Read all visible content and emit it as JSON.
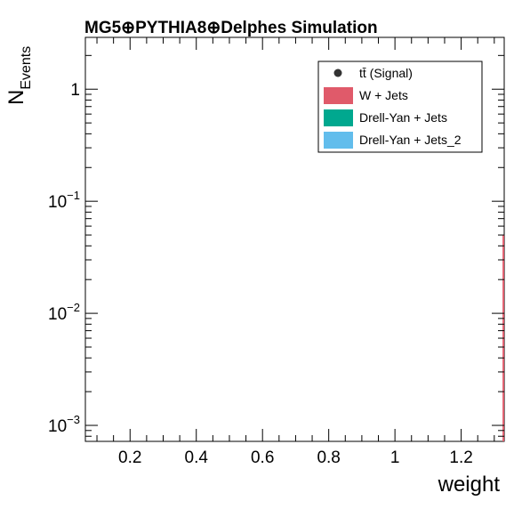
{
  "chart_data": {
    "type": "bar",
    "title": "MG5⊕PYTHIA8⊕Delphes Simulation",
    "xlabel": "weight",
    "ylabel": "N",
    "ylabel_sub": "Events",
    "xlim": [
      0.065,
      1.33
    ],
    "ylim": [
      0.00072,
      2.9
    ],
    "log_y": true,
    "x_ticks": [
      {
        "value": 0.2,
        "label": "0.2"
      },
      {
        "value": 0.4,
        "label": "0.4"
      },
      {
        "value": 0.6,
        "label": "0.6"
      },
      {
        "value": 0.8,
        "label": "0.8"
      },
      {
        "value": 1.0,
        "label": "1"
      },
      {
        "value": 1.2,
        "label": "1.2"
      }
    ],
    "y_ticks": [
      {
        "value": 1,
        "base": "1",
        "exp": ""
      },
      {
        "value": 0.1,
        "base": "10",
        "exp": "−1"
      },
      {
        "value": 0.01,
        "base": "10",
        "exp": "−2"
      },
      {
        "value": 0.001,
        "base": "10",
        "exp": "−3"
      }
    ],
    "legend_position": "top-right",
    "series": [
      {
        "name": "tt̄ (Signal)",
        "style": "marker",
        "color": "#333333",
        "points": []
      },
      {
        "name": "W + Jets",
        "style": "fill",
        "color": "#e05a6a",
        "bins": [
          {
            "x0": 1.325,
            "x1": 1.33,
            "value": 0.05
          }
        ]
      },
      {
        "name": "Drell-Yan + Jets",
        "style": "fill",
        "color": "#00a88f",
        "bins": []
      },
      {
        "name": "Drell-Yan + Jets_2",
        "style": "fill",
        "color": "#62bdec",
        "bins": []
      }
    ]
  }
}
